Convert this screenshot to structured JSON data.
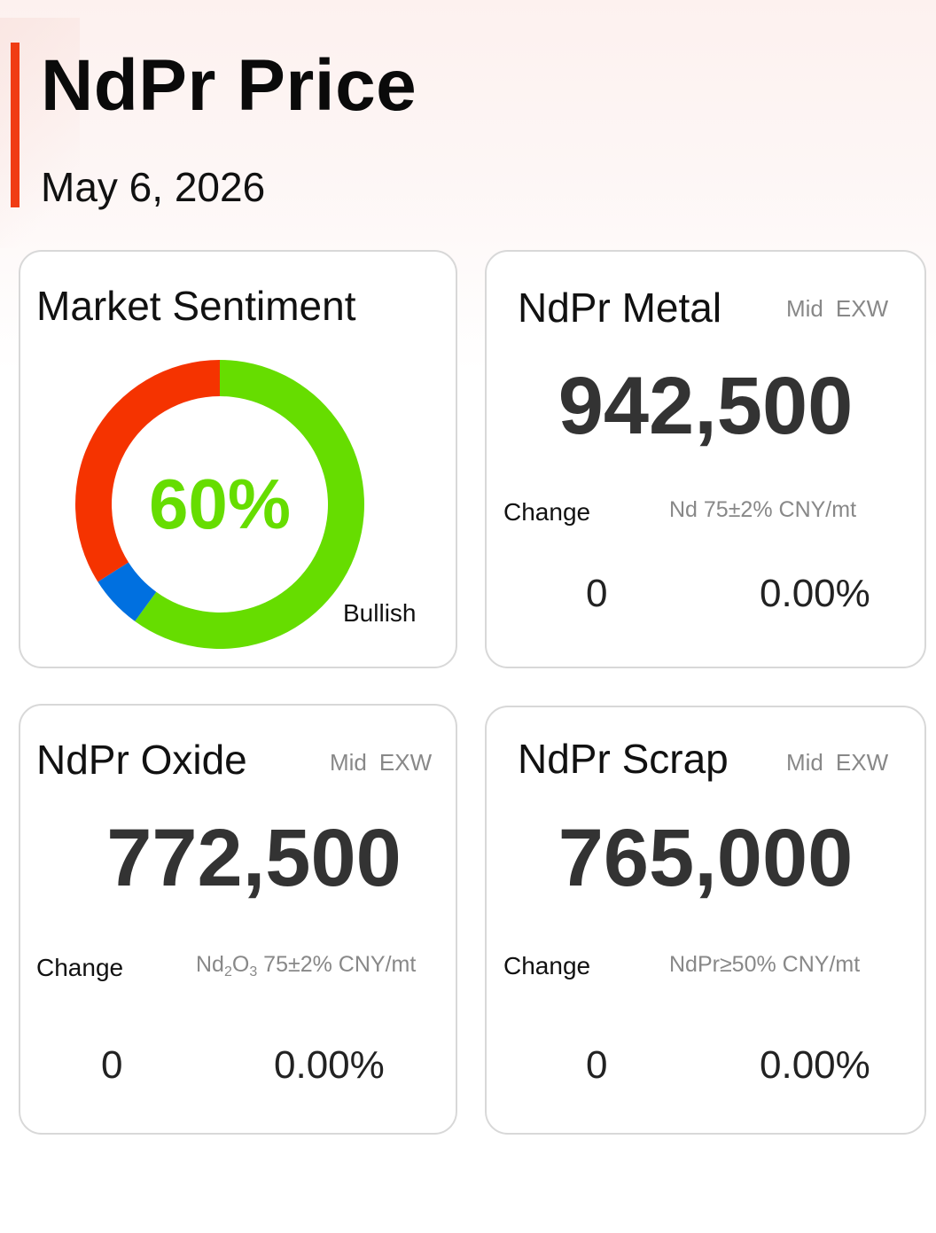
{
  "header": {
    "title": "NdPr Price",
    "date": "May 6, 2026"
  },
  "colors": {
    "accent": "#f03c14",
    "bullish": "#66dd00",
    "bearish": "#f53300",
    "neutral": "#0070e0",
    "price_text": "#333333"
  },
  "sentiment": {
    "title": "Market Sentiment",
    "percent_label": "60%",
    "label": "Bullish",
    "bullish": 60,
    "neutral": 6,
    "bearish": 34
  },
  "metal": {
    "title": "NdPr Metal",
    "tag1": "Mid",
    "tag2": "EXW",
    "price": "942,500",
    "change_label": "Change",
    "spec": "Nd 75±2% CNY/mt",
    "change_abs": "0",
    "change_pct": "0.00%"
  },
  "oxide": {
    "title": "NdPr Oxide",
    "tag1": "Mid",
    "tag2": "EXW",
    "price": "772,500",
    "change_label": "Change",
    "spec_nd": "Nd",
    "spec_sub1": "2",
    "spec_o": "O",
    "spec_sub2": "3",
    "spec_rest": " 75±2% CNY/mt",
    "change_abs": "0",
    "change_pct": "0.00%"
  },
  "scrap": {
    "title": "NdPr Scrap",
    "tag1": "Mid",
    "tag2": "EXW",
    "price": "765,000",
    "change_label": "Change",
    "spec": "NdPr≥50% CNY/mt",
    "change_abs": "0",
    "change_pct": "0.00%"
  }
}
